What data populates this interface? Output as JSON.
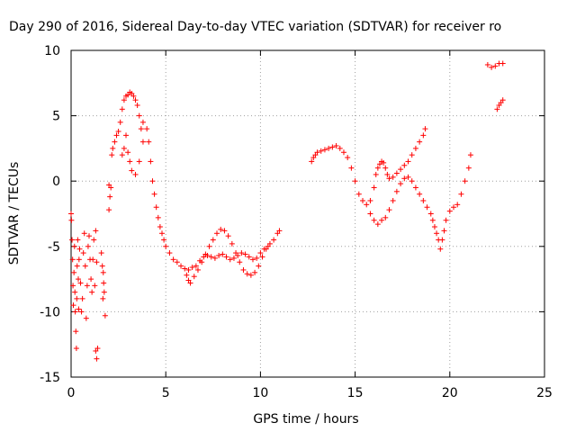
{
  "chart_data": {
    "type": "scatter",
    "title": "Day 290 of 2016, Sidereal Day-to-day VTEC variation (SDTVAR) for receiver ro",
    "xlabel": "GPS time / hours",
    "ylabel": "SDTVAR / TECUs",
    "xlim": [
      0,
      25
    ],
    "ylim": [
      -15,
      10
    ],
    "xticks": [
      0,
      5,
      10,
      15,
      20,
      25
    ],
    "xtick_labels": [
      "0",
      "5",
      "10",
      "15",
      "20",
      "25"
    ],
    "yticks": [
      -15,
      -10,
      -5,
      0,
      5,
      10
    ],
    "ytick_labels": [
      "-15",
      "-10",
      "-5",
      "0",
      "5",
      "10"
    ],
    "grid": true,
    "marker": "+",
    "color": "#ff0000",
    "series": [
      {
        "name": "SDTVAR",
        "points": [
          [
            0.0,
            -2.5
          ],
          [
            0.02,
            -3.0
          ],
          [
            0.05,
            -4.5
          ],
          [
            0.08,
            -6.0
          ],
          [
            0.1,
            -8.0
          ],
          [
            0.12,
            -9.5
          ],
          [
            0.15,
            -7.0
          ],
          [
            0.18,
            -5.0
          ],
          [
            0.2,
            -8.5
          ],
          [
            0.22,
            -10.0
          ],
          [
            0.25,
            -11.5
          ],
          [
            0.28,
            -12.8
          ],
          [
            0.3,
            -9.0
          ],
          [
            0.32,
            -6.5
          ],
          [
            0.35,
            -4.5
          ],
          [
            0.38,
            -7.5
          ],
          [
            0.4,
            -9.8
          ],
          [
            0.42,
            -6.0
          ],
          [
            0.45,
            -5.2
          ],
          [
            0.5,
            -7.8
          ],
          [
            0.55,
            -10.0
          ],
          [
            0.6,
            -9.0
          ],
          [
            0.65,
            -5.5
          ],
          [
            0.7,
            -4.0
          ],
          [
            0.75,
            -6.5
          ],
          [
            0.8,
            -10.5
          ],
          [
            0.85,
            -8.0
          ],
          [
            0.9,
            -5.0
          ],
          [
            0.95,
            -4.2
          ],
          [
            1.0,
            -6.0
          ],
          [
            1.05,
            -7.5
          ],
          [
            1.1,
            -8.5
          ],
          [
            1.15,
            -6.0
          ],
          [
            1.2,
            -4.5
          ],
          [
            1.25,
            -8.0
          ],
          [
            1.3,
            -3.8
          ],
          [
            1.35,
            -6.2
          ],
          [
            1.3,
            -13.0
          ],
          [
            1.35,
            -13.6
          ],
          [
            1.4,
            -12.8
          ],
          [
            1.6,
            -5.5
          ],
          [
            1.65,
            -6.5
          ],
          [
            1.7,
            -7.0
          ],
          [
            1.75,
            -8.5
          ],
          [
            1.8,
            -10.3
          ],
          [
            1.68,
            -9.0
          ],
          [
            1.72,
            -7.8
          ],
          [
            2.0,
            -2.2
          ],
          [
            2.05,
            -1.2
          ],
          [
            2.0,
            -0.3
          ],
          [
            2.1,
            -0.5
          ],
          [
            2.15,
            2.0
          ],
          [
            2.2,
            2.5
          ],
          [
            2.3,
            3.0
          ],
          [
            2.4,
            3.5
          ],
          [
            2.5,
            3.8
          ],
          [
            2.6,
            4.5
          ],
          [
            2.7,
            5.5
          ],
          [
            2.8,
            6.2
          ],
          [
            2.9,
            6.5
          ],
          [
            3.0,
            6.6
          ],
          [
            3.1,
            6.8
          ],
          [
            3.2,
            6.7
          ],
          [
            3.3,
            6.5
          ],
          [
            3.4,
            6.2
          ],
          [
            3.5,
            5.8
          ],
          [
            2.7,
            2.0
          ],
          [
            2.8,
            2.5
          ],
          [
            2.9,
            3.5
          ],
          [
            3.0,
            2.2
          ],
          [
            3.1,
            1.5
          ],
          [
            3.2,
            0.8
          ],
          [
            3.4,
            0.5
          ],
          [
            3.6,
            1.5
          ],
          [
            3.8,
            3.0
          ],
          [
            3.7,
            4.0
          ],
          [
            3.6,
            5.0
          ],
          [
            3.8,
            4.5
          ],
          [
            4.0,
            4.0
          ],
          [
            4.1,
            3.0
          ],
          [
            4.2,
            1.5
          ],
          [
            4.3,
            0.0
          ],
          [
            4.4,
            -1.0
          ],
          [
            4.5,
            -2.0
          ],
          [
            4.6,
            -2.8
          ],
          [
            4.7,
            -3.5
          ],
          [
            4.8,
            -4.0
          ],
          [
            4.9,
            -4.5
          ],
          [
            5.0,
            -5.0
          ],
          [
            5.2,
            -5.5
          ],
          [
            5.4,
            -6.0
          ],
          [
            5.6,
            -6.2
          ],
          [
            5.8,
            -6.5
          ],
          [
            6.0,
            -6.7
          ],
          [
            6.2,
            -6.8
          ],
          [
            6.4,
            -6.6
          ],
          [
            6.1,
            -7.2
          ],
          [
            6.2,
            -7.6
          ],
          [
            6.3,
            -7.8
          ],
          [
            6.5,
            -7.3
          ],
          [
            6.7,
            -6.8
          ],
          [
            6.9,
            -6.2
          ],
          [
            7.1,
            -5.6
          ],
          [
            7.3,
            -5.0
          ],
          [
            7.5,
            -4.5
          ],
          [
            7.7,
            -4.0
          ],
          [
            7.9,
            -3.7
          ],
          [
            8.1,
            -3.8
          ],
          [
            8.3,
            -4.2
          ],
          [
            8.5,
            -4.8
          ],
          [
            8.7,
            -5.5
          ],
          [
            8.9,
            -6.2
          ],
          [
            9.1,
            -6.8
          ],
          [
            9.3,
            -7.1
          ],
          [
            9.5,
            -7.2
          ],
          [
            9.7,
            -7.0
          ],
          [
            9.9,
            -6.5
          ],
          [
            10.1,
            -5.8
          ],
          [
            10.3,
            -5.2
          ],
          [
            10.5,
            -4.8
          ],
          [
            10.7,
            -4.5
          ],
          [
            10.9,
            -4.0
          ],
          [
            11.0,
            -3.8
          ],
          [
            6.6,
            -6.5
          ],
          [
            6.8,
            -6.1
          ],
          [
            7.0,
            -5.8
          ],
          [
            7.2,
            -5.7
          ],
          [
            7.4,
            -5.8
          ],
          [
            7.6,
            -5.9
          ],
          [
            7.8,
            -5.7
          ],
          [
            8.0,
            -5.6
          ],
          [
            8.2,
            -5.8
          ],
          [
            8.4,
            -6.0
          ],
          [
            8.6,
            -5.9
          ],
          [
            8.8,
            -5.7
          ],
          [
            9.0,
            -5.5
          ],
          [
            9.2,
            -5.6
          ],
          [
            9.4,
            -5.8
          ],
          [
            9.6,
            -6.0
          ],
          [
            9.8,
            -5.9
          ],
          [
            10.0,
            -5.5
          ],
          [
            10.2,
            -5.2
          ],
          [
            10.4,
            -5.0
          ],
          [
            12.7,
            1.5
          ],
          [
            12.8,
            1.8
          ],
          [
            12.9,
            2.0
          ],
          [
            13.0,
            2.2
          ],
          [
            13.2,
            2.3
          ],
          [
            13.4,
            2.4
          ],
          [
            13.6,
            2.5
          ],
          [
            13.8,
            2.6
          ],
          [
            14.0,
            2.7
          ],
          [
            14.2,
            2.5
          ],
          [
            14.4,
            2.2
          ],
          [
            14.6,
            1.8
          ],
          [
            14.8,
            1.0
          ],
          [
            15.0,
            0.0
          ],
          [
            15.2,
            -1.0
          ],
          [
            15.4,
            -1.5
          ],
          [
            15.6,
            -1.8
          ],
          [
            15.8,
            -1.5
          ],
          [
            16.0,
            -0.5
          ],
          [
            16.1,
            0.5
          ],
          [
            16.2,
            1.0
          ],
          [
            16.3,
            1.3
          ],
          [
            16.4,
            1.5
          ],
          [
            16.5,
            1.4
          ],
          [
            16.6,
            1.0
          ],
          [
            16.7,
            0.5
          ],
          [
            16.8,
            0.2
          ],
          [
            17.0,
            0.3
          ],
          [
            17.2,
            0.6
          ],
          [
            17.4,
            0.9
          ],
          [
            17.6,
            1.2
          ],
          [
            17.8,
            1.5
          ],
          [
            18.0,
            2.0
          ],
          [
            18.2,
            2.5
          ],
          [
            18.4,
            3.0
          ],
          [
            18.6,
            3.5
          ],
          [
            18.7,
            4.0
          ],
          [
            15.8,
            -2.5
          ],
          [
            16.0,
            -3.0
          ],
          [
            16.2,
            -3.3
          ],
          [
            16.4,
            -3.0
          ],
          [
            16.6,
            -2.8
          ],
          [
            16.8,
            -2.2
          ],
          [
            17.0,
            -1.5
          ],
          [
            17.2,
            -0.8
          ],
          [
            17.4,
            -0.2
          ],
          [
            17.6,
            0.2
          ],
          [
            17.8,
            0.3
          ],
          [
            18.0,
            0.0
          ],
          [
            18.2,
            -0.5
          ],
          [
            18.4,
            -1.0
          ],
          [
            18.6,
            -1.5
          ],
          [
            18.8,
            -2.0
          ],
          [
            19.0,
            -2.5
          ],
          [
            19.1,
            -3.0
          ],
          [
            19.2,
            -3.5
          ],
          [
            19.3,
            -4.0
          ],
          [
            19.4,
            -4.5
          ],
          [
            19.5,
            -5.2
          ],
          [
            19.6,
            -4.5
          ],
          [
            19.7,
            -3.8
          ],
          [
            19.8,
            -3.0
          ],
          [
            20.0,
            -2.3
          ],
          [
            20.2,
            -2.0
          ],
          [
            20.4,
            -1.8
          ],
          [
            20.6,
            -1.0
          ],
          [
            20.8,
            0.0
          ],
          [
            21.0,
            1.0
          ],
          [
            21.1,
            2.0
          ],
          [
            22.0,
            8.9
          ],
          [
            22.2,
            8.7
          ],
          [
            22.4,
            8.8
          ],
          [
            22.6,
            9.0
          ],
          [
            22.8,
            9.0
          ],
          [
            22.5,
            5.5
          ],
          [
            22.6,
            5.8
          ],
          [
            22.7,
            6.0
          ],
          [
            22.8,
            6.2
          ]
        ]
      }
    ]
  }
}
